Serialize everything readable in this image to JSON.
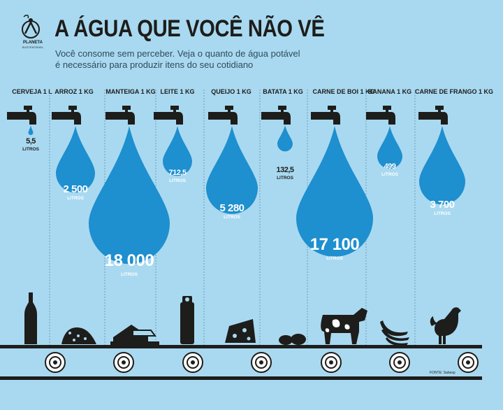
{
  "header": {
    "title": "A ÁGUA QUE VOCÊ NÃO VÊ",
    "subtitle_line1": "Você consome sem perceber. Veja o quanto de água potável",
    "subtitle_line2": "é necessário para produzir itens do seu cotidiano"
  },
  "logo": {
    "name": "PLANETA",
    "tagline": "SUSTENTÁVEL"
  },
  "unit": "LITROS",
  "items": [
    {
      "label": "CERVEJA 1 L",
      "amount": "5,5",
      "value": 5.5
    },
    {
      "label": "ARROZ 1 KG",
      "amount": "2 500",
      "value": 2500
    },
    {
      "label": "MANTEIGA 1 KG",
      "amount": "18 000",
      "value": 18000
    },
    {
      "label": "LEITE 1 KG",
      "amount": "712,5",
      "value": 712.5
    },
    {
      "label": "QUEIJO 1 KG",
      "amount": "5 280",
      "value": 5280
    },
    {
      "label": "BATATA 1 KG",
      "amount": "132,5",
      "value": 132.5
    },
    {
      "label": "CARNE DE BOI 1 KG",
      "amount": "17 100",
      "value": 17100
    },
    {
      "label": "BANANA 1 KG",
      "amount": "499",
      "value": 499
    },
    {
      "label": "CARNE DE FRANGO 1 KG",
      "amount": "3 700",
      "value": 3700
    }
  ],
  "source": "FONTE: Sabesp",
  "colors": {
    "background": "#a9d9f0",
    "drop": "#1e8fcf",
    "ink": "#1d1d1b",
    "separator": "#5f8fa8"
  }
}
